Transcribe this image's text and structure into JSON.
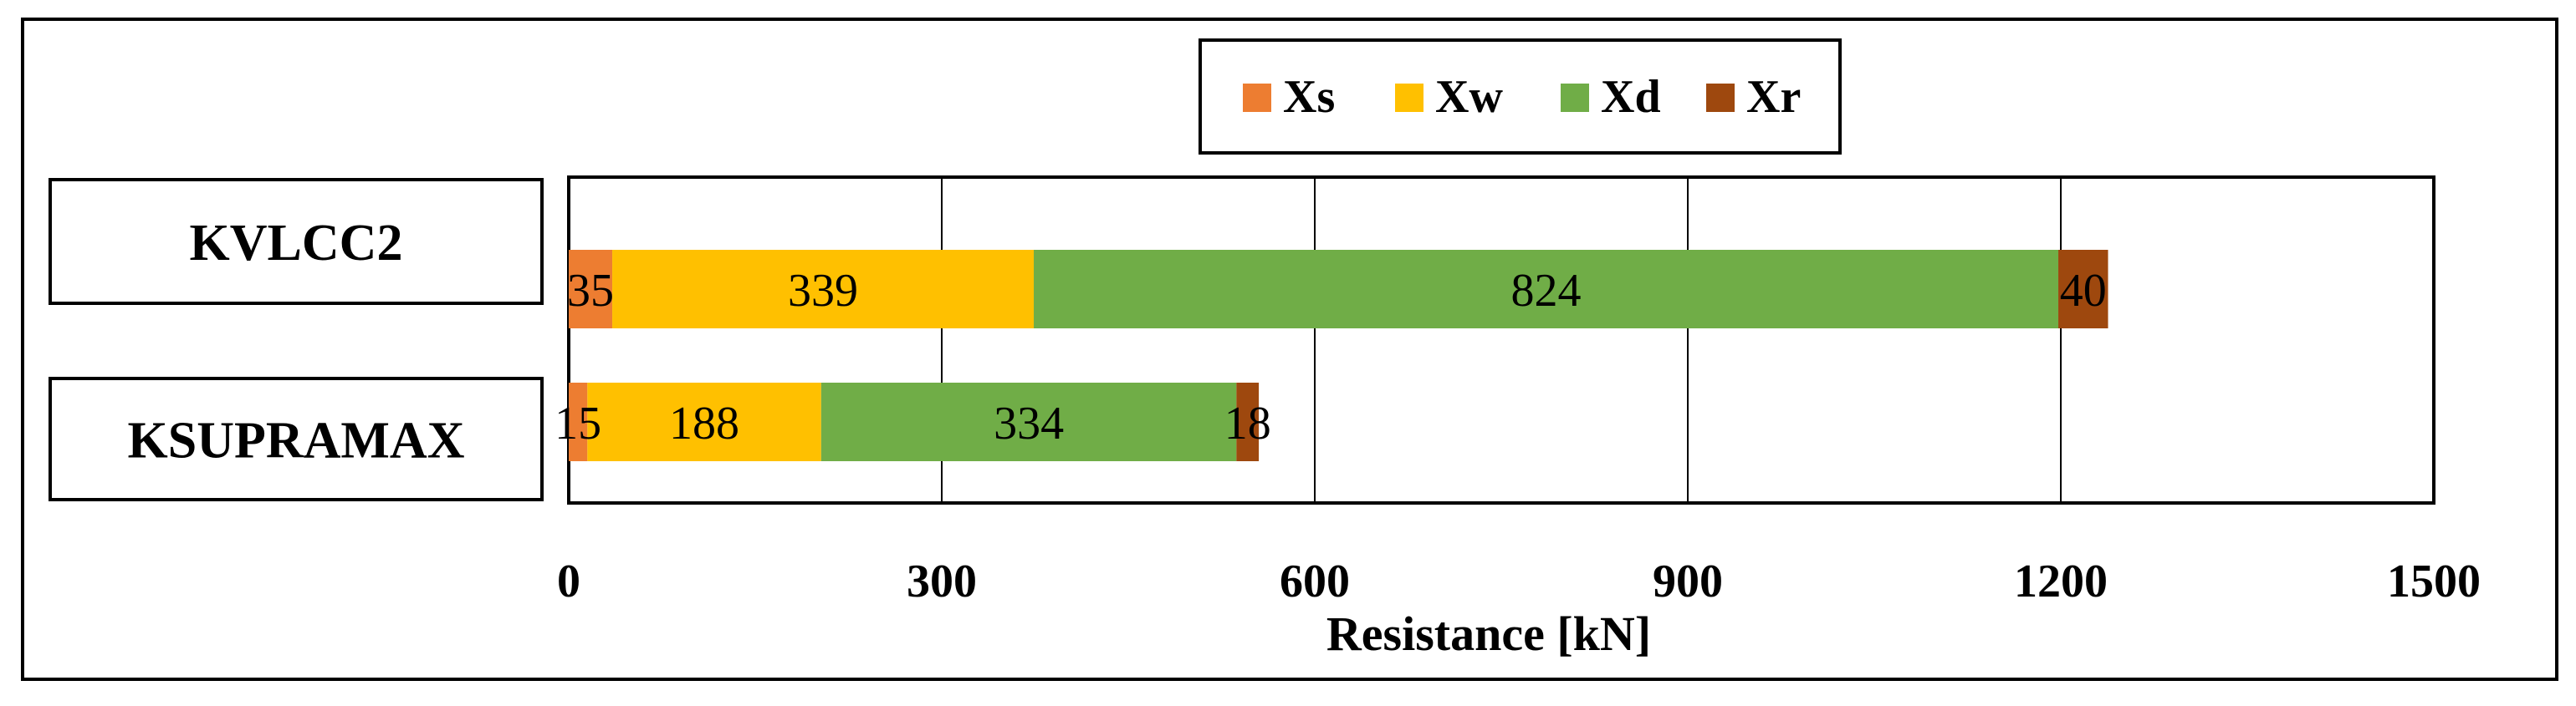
{
  "chart_data": {
    "type": "bar",
    "orientation": "horizontal",
    "stacked": true,
    "categories": [
      "KVLCC2",
      "KSUPRAMAX"
    ],
    "series": [
      {
        "name": "Xs",
        "values": [
          35,
          15
        ],
        "color": "#ED7D31"
      },
      {
        "name": "Xw",
        "values": [
          339,
          188
        ],
        "color": "#FFC000"
      },
      {
        "name": "Xd",
        "values": [
          824,
          334
        ],
        "color": "#70AD47"
      },
      {
        "name": "Xr",
        "values": [
          40,
          18
        ],
        "color": "#9E480E"
      }
    ],
    "x_ticks": [
      "0",
      "300",
      "600",
      "900",
      "1200",
      "1500"
    ],
    "xlim": [
      0,
      1500
    ],
    "xlabel": "Resistance [kN]",
    "ylabel": "",
    "title": "",
    "grid": "vertical",
    "legend_position": "top"
  }
}
